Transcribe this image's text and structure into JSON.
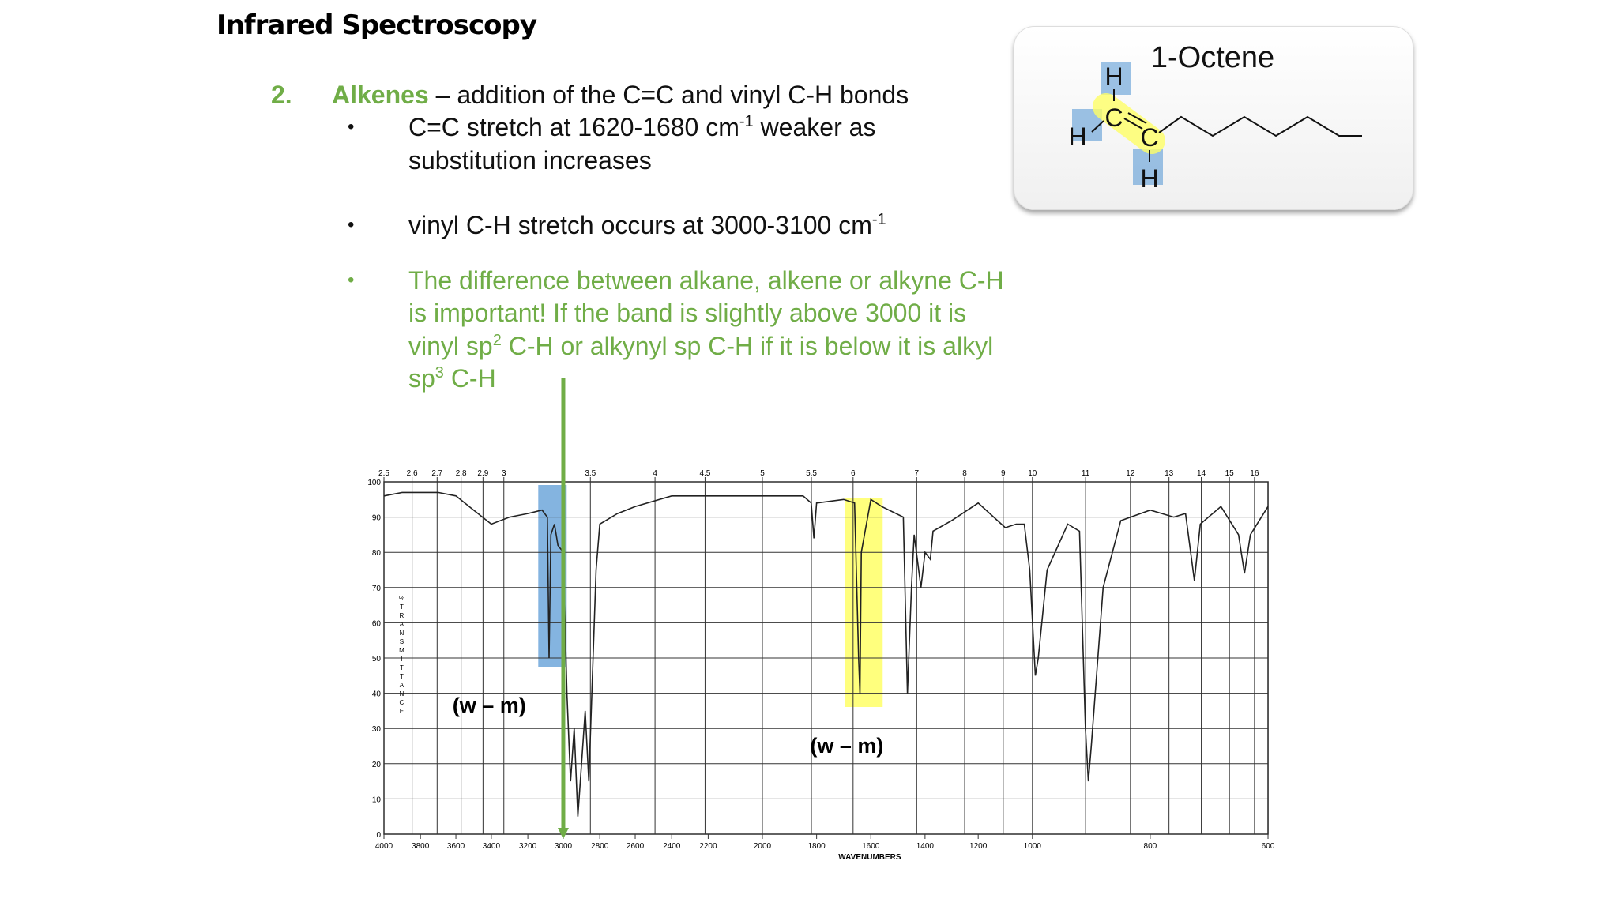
{
  "title": "Infrared Spectroscopy",
  "section": {
    "number": "2.",
    "heading": "Alkenes",
    "text": " – addition of the C=C and vinyl C-H bonds"
  },
  "bullets": [
    {
      "marker": "•",
      "lines": [
        [
          {
            "text": "C=C stretch at 1620-1680 cm"
          },
          {
            "sup": "-1"
          },
          {
            "text": " weaker as"
          }
        ],
        [
          {
            "text": "substitution increases"
          }
        ]
      ]
    },
    {
      "marker": "•",
      "lines": [
        [
          {
            "text": "vinyl C-H stretch occurs at 3000-3100 cm"
          },
          {
            "sup": "-1"
          }
        ]
      ]
    },
    {
      "marker": "•",
      "color": "#70ad47",
      "lines": [
        [
          {
            "text": "The difference between alkane, alkene or alkyne C-H"
          }
        ],
        [
          {
            "text": "is important! If the band is slightly above 3000 it is"
          }
        ],
        [
          {
            "text": "vinyl sp"
          },
          {
            "sup": "2"
          },
          {
            "text": " C-H or alkynyl sp C-H if it is below it is alkyl"
          }
        ],
        [
          {
            "text": "sp"
          },
          {
            "sup": "3"
          },
          {
            "text": " C-H"
          }
        ]
      ]
    }
  ],
  "molecule": {
    "name": "1-Octene",
    "atoms": [
      "H",
      "C",
      "H",
      "C",
      "H"
    ]
  },
  "spectrum": {
    "type": "line",
    "color": "#222222",
    "xlabel": "WAVENUMBERS",
    "ylabel": "%TRANSMITTANCE",
    "ylim": [
      0,
      100
    ],
    "yticks": [
      0,
      10,
      20,
      30,
      40,
      50,
      60,
      70,
      80,
      90,
      100
    ],
    "xticks": [
      4000,
      3800,
      3600,
      3400,
      3200,
      3000,
      2800,
      2600,
      2400,
      2200,
      2000,
      1800,
      1600,
      1400,
      1200,
      1000,
      800,
      600
    ],
    "top_ticks": [
      2.5,
      2.6,
      2.7,
      2.8,
      2.9,
      3,
      3.5,
      4,
      4.5,
      5,
      5.5,
      6,
      7,
      8,
      9,
      10,
      11,
      12,
      13,
      14,
      15,
      16
    ],
    "annotations": [
      "(w – m)",
      "(w – m)"
    ],
    "x": [
      4000,
      3900,
      3800,
      3700,
      3600,
      3500,
      3400,
      3300,
      3200,
      3120,
      3090,
      3080,
      3070,
      3050,
      3030,
      3000,
      2980,
      2960,
      2940,
      2920,
      2900,
      2880,
      2860,
      2850,
      2820,
      2800,
      2700,
      2600,
      2400,
      2200,
      2000,
      1850,
      1820,
      1810,
      1800,
      1700,
      1660,
      1645,
      1640,
      1635,
      1600,
      1560,
      1480,
      1465,
      1450,
      1440,
      1415,
      1400,
      1380,
      1370,
      1300,
      1200,
      1100,
      1060,
      1030,
      1010,
      995,
      990,
      975,
      940,
      920,
      910,
      905,
      900,
      880,
      850,
      800,
      760,
      740,
      725,
      715,
      680,
      650,
      640,
      630,
      600
    ],
    "values": [
      96,
      97,
      97,
      97,
      96,
      92,
      88,
      90,
      91,
      92,
      90,
      50,
      85,
      88,
      82,
      80,
      40,
      15,
      30,
      5,
      20,
      35,
      15,
      30,
      75,
      88,
      91,
      93,
      96,
      96,
      96,
      96,
      94,
      84,
      94,
      95,
      94,
      50,
      40,
      80,
      95,
      93,
      90,
      40,
      70,
      85,
      70,
      80,
      78,
      86,
      89,
      94,
      87,
      88,
      88,
      75,
      45,
      50,
      75,
      88,
      86,
      30,
      15,
      25,
      70,
      89,
      92,
      90,
      91,
      72,
      88,
      93,
      85,
      74,
      85,
      93
    ]
  }
}
